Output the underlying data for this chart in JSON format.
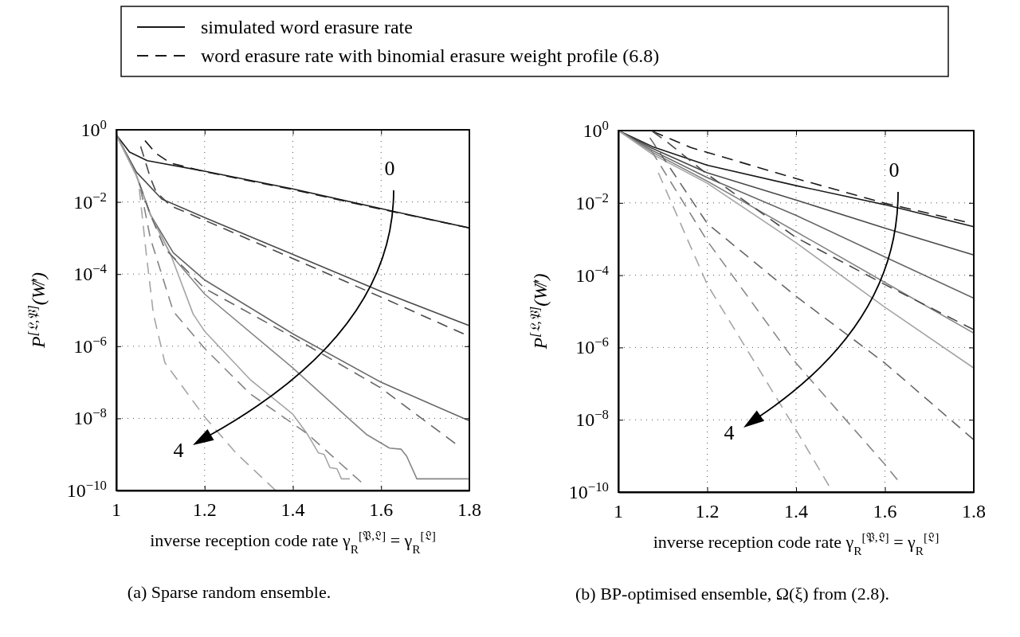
{
  "chart_data": [
    {
      "type": "line",
      "xlabel": "inverse reception code rate γ$_{R}$$^{[𝔓,𝔏]}$ = γ$_{R}$$^{[𝔏]}$",
      "ylabel": "P$^{[𝔏,𝔓]}$(W̸′)",
      "log": "y",
      "xlim": [
        1,
        1.8
      ],
      "xticks": [
        1,
        1.2,
        1.4,
        1.6,
        1.8
      ],
      "ylim": [
        1e-10,
        1
      ],
      "yticks": [
        {
          "value": 1,
          "label": "10$^{0}$"
        },
        {
          "value": 0.01,
          "label": "10$^{−2}$"
        },
        {
          "value": 0.0001,
          "label": "10$^{−4}$"
        },
        {
          "value": 1e-06,
          "label": "10$^{−6}$"
        },
        {
          "value": 1e-08,
          "label": "10$^{−8}$"
        },
        {
          "value": 1e-10,
          "label": "10$^{−10}$"
        }
      ],
      "grid": true,
      "legend": "top",
      "series": [
        {
          "name": "simulated word erasure rate",
          "color": "#1a1a1a",
          "line_style": "solid",
          "x": [
            1,
            1.03,
            1.07,
            1.2,
            1.4,
            1.6,
            1.8
          ],
          "values": [
            0.72,
            0.24,
            0.14,
            0.071,
            0.023,
            0.0065,
            0.0019
          ]
        },
        {
          "color": "#4a4a4a",
          "line_style": "solid",
          "x": [
            1,
            1.045,
            1.103,
            1.2,
            1.4,
            1.6,
            1.8
          ],
          "values": [
            0.72,
            0.068,
            0.012,
            0.0037,
            0.00035,
            3.3e-05,
            3.7e-06
          ]
        },
        {
          "color": "#676767",
          "line_style": "solid",
          "x": [
            1,
            1.045,
            1.077,
            1.129,
            1.2,
            1.4,
            1.6,
            1.8
          ],
          "values": [
            0.72,
            0.056,
            0.0045,
            0.00039,
            6.9e-05,
            2.2e-06,
            1e-07,
            8.5e-09
          ]
        },
        {
          "color": "#858585",
          "line_style": "solid",
          "x": [
            1,
            1.045,
            1.077,
            1.123,
            1.2,
            1.4,
            1.529,
            1.568,
            1.619,
            1.645,
            1.658,
            1.681,
            1.8
          ],
          "values": [
            0.72,
            0.056,
            0.0045,
            0.00035,
            2.8e-05,
            2.5e-07,
            9.3e-09,
            3.5e-09,
            1.5e-09,
            1.4e-09,
            8.9e-10,
            2.1e-10,
            2.1e-10
          ]
        },
        {
          "color": "#a5a5a5",
          "line_style": "solid",
          "x": [
            1,
            1.045,
            1.077,
            1.123,
            1.174,
            1.2,
            1.303,
            1.4,
            1.432,
            1.458,
            1.471,
            1.484,
            1.5,
            1.51,
            1.529
          ],
          "values": [
            0.72,
            0.056,
            0.0045,
            0.00035,
            7.8e-06,
            2.6e-06,
            1.2e-07,
            1.3e-08,
            3.8e-09,
            1.1e-09,
            1e-09,
            4.3e-10,
            4e-10,
            2.1e-10,
            2.1e-10
          ]
        },
        {
          "name": "word erasure rate with binomial erasure weight profile (6.8)",
          "color": "#1a1a1a",
          "line_style": "dashed",
          "x": [
            1.065,
            1.09,
            1.123,
            1.2,
            1.4,
            1.6,
            1.8
          ],
          "values": [
            0.5,
            0.22,
            0.12,
            0.069,
            0.022,
            0.0063,
            0.0019
          ]
        },
        {
          "color": "#4a4a4a",
          "line_style": "dashed",
          "x": [
            1.055,
            1.077,
            1.09,
            1.123,
            1.2,
            1.4,
            1.6,
            1.787
          ],
          "values": [
            0.35,
            0.047,
            0.019,
            0.0078,
            0.0031,
            0.00027,
            2.3e-05,
            2.2e-06
          ]
        },
        {
          "color": "#676767",
          "line_style": "dashed",
          "x": [
            1.052,
            1.077,
            1.11,
            1.161,
            1.2,
            1.4,
            1.6,
            1.768
          ],
          "values": [
            0.033,
            0.0045,
            0.0005,
            0.00012,
            4e-05,
            1.8e-06,
            6.9e-08,
            2e-09
          ]
        },
        {
          "color": "#858585",
          "line_style": "dashed",
          "x": [
            1.055,
            1.077,
            1.129,
            1.2,
            1.303,
            1.432,
            1.555
          ],
          "values": [
            0.023,
            0.001,
            9.3e-06,
            8.7e-07,
            4.8e-08,
            3.8e-09,
            1.7e-10
          ]
        },
        {
          "color": "#a5a5a5",
          "line_style": "dashed",
          "x": [
            1.052,
            1.068,
            1.084,
            1.11,
            1.2,
            1.271,
            1.361
          ],
          "values": [
            0.023,
            0.00035,
            7.8e-06,
            3.5e-07,
            1.1e-08,
            1.1e-09,
            1e-10
          ]
        }
      ],
      "annotations": [
        "0",
        "4",
        "(a) Sparse random ensemble."
      ]
    },
    {
      "type": "line",
      "xlabel": "inverse reception code rate γ$_{R}$$^{[𝔓,𝔏]}$ = γ$_{R}$$^{[𝔏]}$",
      "ylabel": "P$^{[𝔏,𝔓]}$(W̸′)",
      "log": "y",
      "xlim": [
        1,
        1.8
      ],
      "xticks": [
        1,
        1.2,
        1.4,
        1.6,
        1.8
      ],
      "ylim": [
        1e-10,
        1
      ],
      "yticks": [
        {
          "value": 1,
          "label": "10$^{0}$"
        },
        {
          "value": 0.01,
          "label": "10$^{−2}$"
        },
        {
          "value": 0.0001,
          "label": "10$^{−4}$"
        },
        {
          "value": 1e-06,
          "label": "10$^{−6}$"
        },
        {
          "value": 1e-08,
          "label": "10$^{−8}$"
        },
        {
          "value": 1e-10,
          "label": "10$^{−10}$"
        }
      ],
      "grid": true,
      "series": [
        {
          "color": "#1a1a1a",
          "line_style": "solid",
          "x": [
            1,
            1.077,
            1.2,
            1.4,
            1.6,
            1.8
          ],
          "values": [
            1,
            0.36,
            0.11,
            0.03,
            0.0089,
            0.0022
          ]
        },
        {
          "color": "#4a4a4a",
          "line_style": "solid",
          "x": [
            1,
            1.077,
            1.2,
            1.4,
            1.6,
            1.8
          ],
          "values": [
            1,
            0.32,
            0.068,
            0.012,
            0.002,
            0.00036
          ]
        },
        {
          "color": "#676767",
          "line_style": "solid",
          "x": [
            1,
            1.077,
            1.2,
            1.4,
            1.6,
            1.8
          ],
          "values": [
            1,
            0.28,
            0.05,
            0.0045,
            0.00032,
            2.3e-05
          ]
        },
        {
          "color": "#858585",
          "line_style": "solid",
          "x": [
            1,
            1.077,
            1.2,
            1.4,
            1.6,
            1.8
          ],
          "values": [
            1,
            0.25,
            0.04,
            0.0016,
            6.3e-05,
            2.5e-06
          ]
        },
        {
          "color": "#a5a5a5",
          "line_style": "solid",
          "x": [
            1,
            1.077,
            1.2,
            1.4,
            1.6,
            1.8
          ],
          "values": [
            1,
            0.22,
            0.035,
            0.00079,
            1.3e-05,
            2.7e-07
          ]
        },
        {
          "color": "#1a1a1a",
          "line_style": "dashed",
          "x": [
            1.077,
            1.163,
            1.4,
            1.6,
            1.78
          ],
          "values": [
            0.95,
            0.34,
            0.047,
            0.0098,
            0.003
          ]
        },
        {
          "color": "#4a4a4a",
          "line_style": "dashed",
          "x": [
            1.077,
            1.11,
            1.2,
            1.4,
            1.6,
            1.8
          ],
          "values": [
            0.95,
            0.48,
            0.062,
            0.0011,
            5.5e-05,
            3.1e-06
          ]
        },
        {
          "color": "#676767",
          "line_style": "dashed",
          "x": [
            1.071,
            1.2,
            1.4,
            1.6,
            1.8
          ],
          "values": [
            0.63,
            0.0027,
            2.6e-05,
            3.7e-07,
            2.8e-09
          ]
        },
        {
          "color": "#858585",
          "line_style": "dashed",
          "x": [
            1.074,
            1.2,
            1.4,
            1.6,
            1.628
          ],
          "values": [
            0.28,
            0.00089,
            3.7e-07,
            5.8e-10,
            2.2e-10
          ]
        },
        {
          "color": "#a5a5a5",
          "line_style": "dashed",
          "x": [
            1.09,
            1.2,
            1.4,
            1.474
          ],
          "values": [
            0.068,
            5.5e-05,
            5.2e-09,
            1.5e-10
          ]
        }
      ],
      "annotations": [
        "0",
        "4",
        "(b) BP-optimised ensemble, Ω(ξ) from (2.8)."
      ]
    }
  ]
}
